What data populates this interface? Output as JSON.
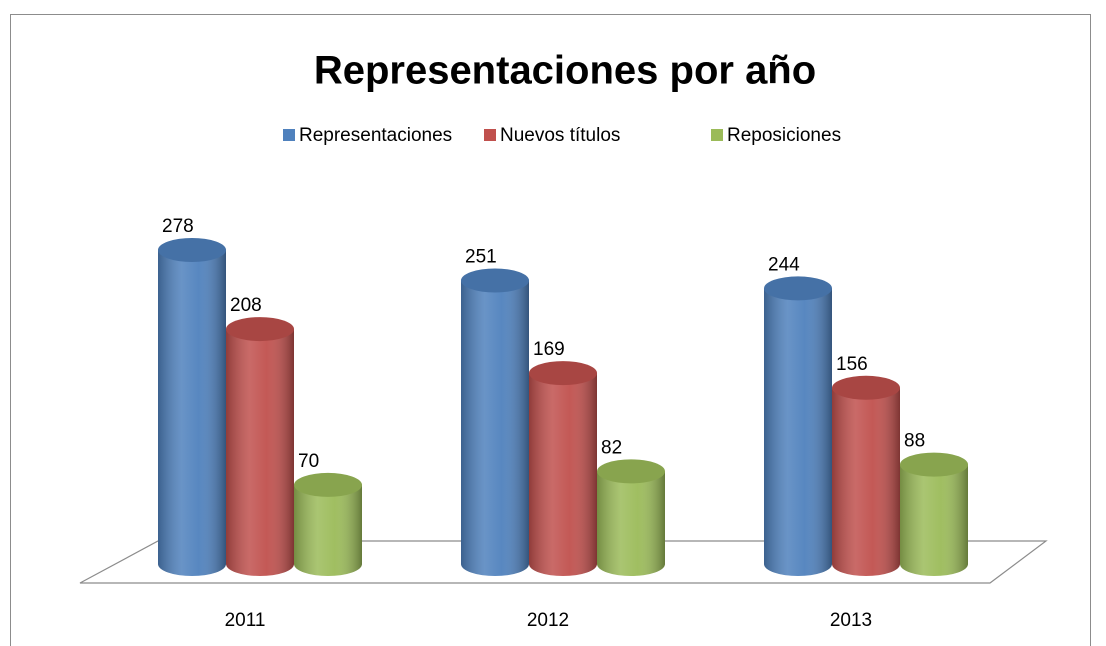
{
  "chart_data": {
    "type": "bar3d",
    "title": "Representaciones por año",
    "categories": [
      "2011",
      "2012",
      "2013"
    ],
    "series": [
      {
        "name": "Representaciones",
        "color": "#4f81bd",
        "values": [
          278,
          251,
          244
        ]
      },
      {
        "name": "Nuevos títulos",
        "color": "#c0504d",
        "values": [
          208,
          169,
          156
        ]
      },
      {
        "name": "Reposiciones",
        "color": "#9bbb59",
        "values": [
          70,
          82,
          88
        ]
      }
    ],
    "legend": "top"
  }
}
